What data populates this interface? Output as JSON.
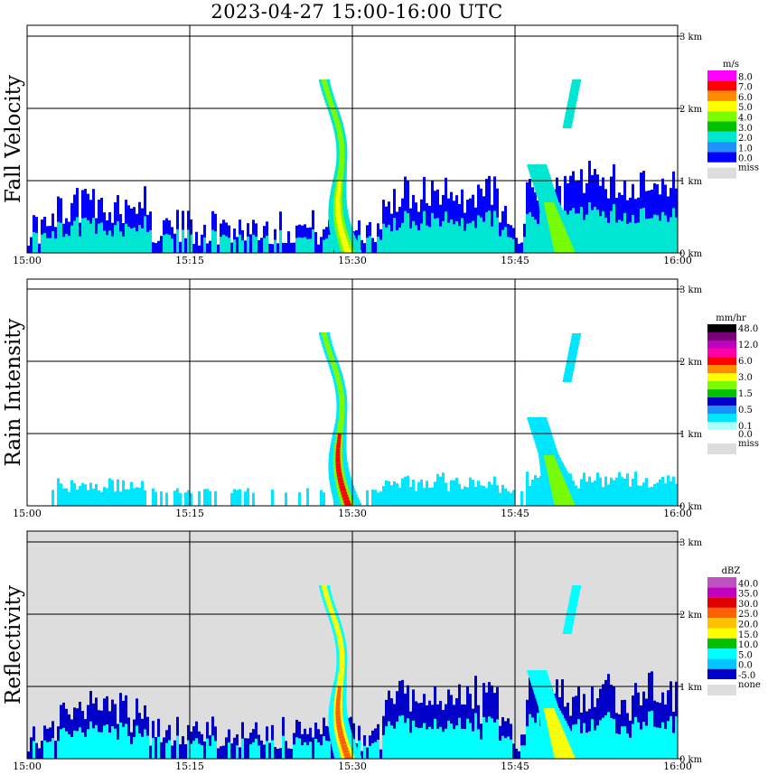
{
  "title": "2023-04-27  15:00-16:00 UTC",
  "x_ticks": [
    "15:00",
    "15:15",
    "15:30",
    "15:45",
    "16:00"
  ],
  "y_ticks": [
    "0 km",
    "1 km",
    "2 km",
    "3 km"
  ],
  "chart_data": [
    {
      "type": "heatmap",
      "ylabel": "Fall Velocity",
      "legend_unit": "m/s",
      "legend": [
        {
          "label": "8.0",
          "color": "#ff00ff"
        },
        {
          "label": "7.0",
          "color": "#ff0000"
        },
        {
          "label": "6.0",
          "color": "#ff8c00"
        },
        {
          "label": "5.0",
          "color": "#ffff00"
        },
        {
          "label": "4.0",
          "color": "#7cfc00"
        },
        {
          "label": "3.0",
          "color": "#00c000"
        },
        {
          "label": "2.0",
          "color": "#00e6d2"
        },
        {
          "label": "1.0",
          "color": "#1e90ff"
        },
        {
          "label": "0.0",
          "color": "#0000ff"
        },
        {
          "label": "miss",
          "color": "#dddddd"
        }
      ],
      "background": "#ffffff",
      "xlim": [
        "15:00",
        "16:00"
      ],
      "ylim_km": [
        0,
        3.2
      ]
    },
    {
      "type": "heatmap",
      "ylabel": "Rain Intensity",
      "legend_unit": "mm/hr",
      "legend": [
        {
          "label": "48.0",
          "color": "#000000"
        },
        {
          "label": "",
          "color": "#7a007a"
        },
        {
          "label": "12.0",
          "color": "#c000c0"
        },
        {
          "label": "",
          "color": "#ff00aa"
        },
        {
          "label": "6.0",
          "color": "#ff0000"
        },
        {
          "label": "",
          "color": "#ff8c00"
        },
        {
          "label": "3.0",
          "color": "#ffff00"
        },
        {
          "label": "",
          "color": "#7cfc00"
        },
        {
          "label": "1.5",
          "color": "#00c000"
        },
        {
          "label": "",
          "color": "#0000c8"
        },
        {
          "label": "0.5",
          "color": "#1e90ff"
        },
        {
          "label": "",
          "color": "#00e6ff"
        },
        {
          "label": "0.1",
          "color": "#aaffff"
        },
        {
          "label": "0.0",
          "color": "#ffffff"
        },
        {
          "label": "miss",
          "color": "#dddddd"
        }
      ],
      "background": "#ffffff",
      "xlim": [
        "15:00",
        "16:00"
      ],
      "ylim_km": [
        0,
        3.2
      ]
    },
    {
      "type": "heatmap",
      "ylabel": "Reflectivity",
      "legend_unit": "dBZ",
      "legend": [
        {
          "label": "40.0",
          "color": "#c050c0"
        },
        {
          "label": "35.0",
          "color": "#c000c0"
        },
        {
          "label": "30.0",
          "color": "#e00000"
        },
        {
          "label": "25.0",
          "color": "#ff6000"
        },
        {
          "label": "20.0",
          "color": "#ffc000"
        },
        {
          "label": "15.0",
          "color": "#ffff00"
        },
        {
          "label": "10.0",
          "color": "#00c000"
        },
        {
          "label": "5.0",
          "color": "#00ffff"
        },
        {
          "label": "0.0",
          "color": "#00c8ff"
        },
        {
          "label": "-5.0",
          "color": "#0000c8"
        },
        {
          "label": "none",
          "color": "#dddddd"
        }
      ],
      "background": "#dddddd",
      "xlim": [
        "15:00",
        "16:00"
      ],
      "ylim_km": [
        0,
        3.2
      ]
    }
  ]
}
